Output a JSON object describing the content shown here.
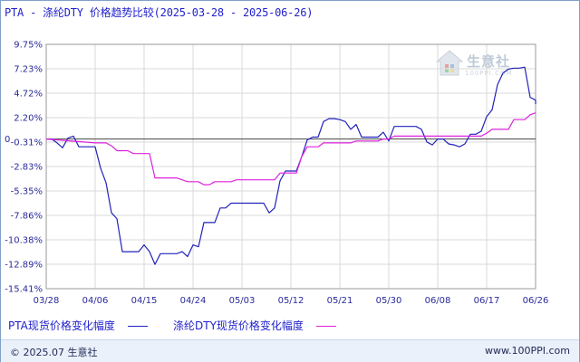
{
  "title": "PTA - 涤纶DTY 价格趋势比较(2025-03-28 - 2025-06-26)",
  "footer": {
    "copyright": "© 2025.07 生意社",
    "url": "www.100PPI.com"
  },
  "logo": {
    "text": "生意社",
    "sub": "100PPI.COM"
  },
  "colors": {
    "pta": "#2222bb",
    "dty": "#dd22dd",
    "axis": "#333333",
    "grid": "#d8d8d8"
  },
  "chart_data": {
    "type": "line",
    "title": "PTA - 涤纶DTY 价格趋势比较(2025-03-28 - 2025-06-26)",
    "xlabel": "",
    "ylabel": "",
    "x_ticks": [
      "03/28",
      "04/06",
      "04/15",
      "04/24",
      "05/03",
      "05/12",
      "05/21",
      "05/30",
      "06/08",
      "06/17",
      "06/26"
    ],
    "y_ticks": [
      "9.75%",
      "7.23%",
      "4.72%",
      "2.20%",
      "-0.31%",
      "-2.83%",
      "-5.35%",
      "-7.86%",
      "-10.38%",
      "-12.89%",
      "-15.41%"
    ],
    "ylim": [
      -15.41,
      9.75
    ],
    "xlim": [
      0,
      90
    ],
    "zero_label": "0",
    "grid": true,
    "legend_position": "bottom-left",
    "series": [
      {
        "name": "PTA现货价格变化幅度",
        "color": "#2222bb",
        "points": [
          [
            0,
            0
          ],
          [
            1,
            0
          ],
          [
            2,
            -0.4
          ],
          [
            3,
            -0.9
          ],
          [
            4,
            0.1
          ],
          [
            5,
            0.3
          ],
          [
            6,
            -0.8
          ],
          [
            7,
            -0.8
          ],
          [
            8,
            -0.8
          ],
          [
            9,
            -0.8
          ],
          [
            10,
            -3.0
          ],
          [
            11,
            -4.5
          ],
          [
            12,
            -7.6
          ],
          [
            13,
            -8.2
          ],
          [
            14,
            -11.6
          ],
          [
            15,
            -11.6
          ],
          [
            16,
            -11.6
          ],
          [
            17,
            -11.6
          ],
          [
            18,
            -10.9
          ],
          [
            19,
            -11.6
          ],
          [
            20,
            -12.9
          ],
          [
            21,
            -11.8
          ],
          [
            22,
            -11.8
          ],
          [
            23,
            -11.8
          ],
          [
            24,
            -11.8
          ],
          [
            25,
            -11.6
          ],
          [
            26,
            -12.1
          ],
          [
            27,
            -10.9
          ],
          [
            28,
            -11.1
          ],
          [
            29,
            -8.6
          ],
          [
            30,
            -8.6
          ],
          [
            31,
            -8.6
          ],
          [
            32,
            -7.1
          ],
          [
            33,
            -7.1
          ],
          [
            34,
            -6.6
          ],
          [
            35,
            -6.6
          ],
          [
            36,
            -6.6
          ],
          [
            37,
            -6.6
          ],
          [
            38,
            -6.6
          ],
          [
            39,
            -6.6
          ],
          [
            40,
            -6.6
          ],
          [
            41,
            -7.6
          ],
          [
            42,
            -7.1
          ],
          [
            43,
            -4.3
          ],
          [
            44,
            -3.3
          ],
          [
            45,
            -3.3
          ],
          [
            46,
            -3.3
          ],
          [
            47,
            -1.8
          ],
          [
            48,
            -0.1
          ],
          [
            49,
            0.2
          ],
          [
            50,
            0.2
          ],
          [
            51,
            1.8
          ],
          [
            52,
            2.1
          ],
          [
            53,
            2.1
          ],
          [
            54,
            2.0
          ],
          [
            55,
            1.8
          ],
          [
            56,
            1.0
          ],
          [
            57,
            1.5
          ],
          [
            58,
            0.2
          ],
          [
            59,
            0.2
          ],
          [
            60,
            0.2
          ],
          [
            61,
            0.2
          ],
          [
            62,
            0.7
          ],
          [
            63,
            -0.2
          ],
          [
            64,
            1.3
          ],
          [
            65,
            1.3
          ],
          [
            66,
            1.3
          ],
          [
            67,
            1.3
          ],
          [
            68,
            1.3
          ],
          [
            69,
            1.0
          ],
          [
            70,
            -0.3
          ],
          [
            71,
            -0.6
          ],
          [
            72,
            0
          ],
          [
            73,
            0
          ],
          [
            74,
            -0.5
          ],
          [
            75,
            -0.6
          ],
          [
            76,
            -0.8
          ],
          [
            77,
            -0.5
          ],
          [
            78,
            0.5
          ],
          [
            79,
            0.5
          ],
          [
            80,
            0.8
          ],
          [
            81,
            2.3
          ],
          [
            82,
            3.0
          ],
          [
            83,
            5.6
          ],
          [
            84,
            6.8
          ],
          [
            85,
            7.2
          ],
          [
            86,
            7.3
          ],
          [
            87,
            7.3
          ],
          [
            88,
            7.4
          ],
          [
            89,
            4.3
          ],
          [
            90,
            4.0
          ],
          [
            91,
            3.6
          ]
        ]
      },
      {
        "name": "涤纶DTY现货价格变化幅度",
        "color": "#dd22dd",
        "points": [
          [
            0,
            0
          ],
          [
            9,
            -0.4
          ],
          [
            10,
            -0.4
          ],
          [
            11,
            -0.4
          ],
          [
            12,
            -0.7
          ],
          [
            13,
            -1.2
          ],
          [
            14,
            -1.2
          ],
          [
            15,
            -1.2
          ],
          [
            16,
            -1.5
          ],
          [
            17,
            -1.5
          ],
          [
            18,
            -1.5
          ],
          [
            19,
            -1.5
          ],
          [
            20,
            -4.0
          ],
          [
            21,
            -4.0
          ],
          [
            22,
            -4.0
          ],
          [
            23,
            -4.0
          ],
          [
            24,
            -4.0
          ],
          [
            25,
            -4.2
          ],
          [
            26,
            -4.4
          ],
          [
            27,
            -4.4
          ],
          [
            28,
            -4.4
          ],
          [
            29,
            -4.7
          ],
          [
            30,
            -4.7
          ],
          [
            31,
            -4.4
          ],
          [
            32,
            -4.4
          ],
          [
            33,
            -4.4
          ],
          [
            34,
            -4.4
          ],
          [
            35,
            -4.2
          ],
          [
            36,
            -4.2
          ],
          [
            37,
            -4.2
          ],
          [
            38,
            -4.2
          ],
          [
            39,
            -4.2
          ],
          [
            40,
            -4.2
          ],
          [
            41,
            -4.2
          ],
          [
            42,
            -4.2
          ],
          [
            43,
            -3.5
          ],
          [
            44,
            -3.5
          ],
          [
            45,
            -3.5
          ],
          [
            46,
            -3.5
          ],
          [
            47,
            -1.8
          ],
          [
            48,
            -0.8
          ],
          [
            49,
            -0.8
          ],
          [
            50,
            -0.8
          ],
          [
            51,
            -0.4
          ],
          [
            52,
            -0.4
          ],
          [
            53,
            -0.4
          ],
          [
            54,
            -0.4
          ],
          [
            55,
            -0.4
          ],
          [
            56,
            -0.4
          ],
          [
            57,
            -0.2
          ],
          [
            58,
            -0.2
          ],
          [
            59,
            -0.2
          ],
          [
            60,
            -0.2
          ],
          [
            61,
            -0.2
          ],
          [
            62,
            0
          ],
          [
            63,
            0
          ],
          [
            64,
            0.3
          ],
          [
            65,
            0.3
          ],
          [
            66,
            0.3
          ],
          [
            67,
            0.3
          ],
          [
            68,
            0.3
          ],
          [
            69,
            0.3
          ],
          [
            70,
            0.3
          ],
          [
            71,
            0.3
          ],
          [
            72,
            0.3
          ],
          [
            73,
            0.3
          ],
          [
            74,
            0.3
          ],
          [
            75,
            0.3
          ],
          [
            76,
            0.3
          ],
          [
            77,
            0.3
          ],
          [
            78,
            0.3
          ],
          [
            79,
            0.3
          ],
          [
            80,
            0.3
          ],
          [
            81,
            0.6
          ],
          [
            82,
            1.0
          ],
          [
            83,
            1.0
          ],
          [
            84,
            1.0
          ],
          [
            85,
            1.0
          ],
          [
            86,
            2.0
          ],
          [
            87,
            2.0
          ],
          [
            88,
            2.0
          ],
          [
            89,
            2.5
          ],
          [
            90,
            2.7
          ],
          [
            91,
            2.7
          ]
        ]
      }
    ]
  }
}
